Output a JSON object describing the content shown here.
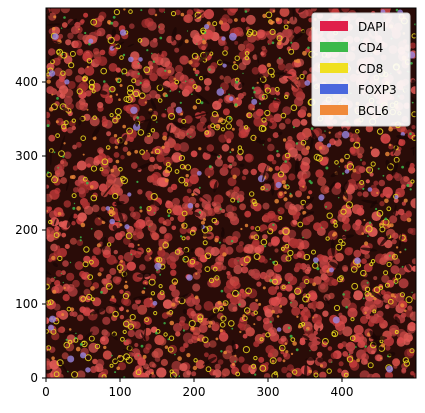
{
  "figure": {
    "x_axis": {
      "min": 0,
      "max": 500,
      "ticks": [
        "0",
        "100",
        "200",
        "300",
        "400"
      ],
      "tick_values": [
        0,
        100,
        200,
        300,
        400
      ]
    },
    "y_axis": {
      "min": 0,
      "max": 500,
      "ticks": [
        "0",
        "100",
        "200",
        "300",
        "400"
      ],
      "tick_values": [
        0,
        100,
        200,
        300,
        400
      ]
    },
    "image": {
      "description_icon": "multiplex-immunofluorescence-tissue-image",
      "background_color": "#2a0c08",
      "base_color": "#b83a3a"
    },
    "legend": {
      "placement": "top-right",
      "items": [
        {
          "label": "DAPI",
          "color": "#e0204a"
        },
        {
          "label": "CD4",
          "color": "#3cb94a"
        },
        {
          "label": "CD8",
          "color": "#f0e020"
        },
        {
          "label": "FOXP3",
          "color": "#4a67dd"
        },
        {
          "label": "BCL6",
          "color": "#f0893a"
        }
      ]
    }
  }
}
